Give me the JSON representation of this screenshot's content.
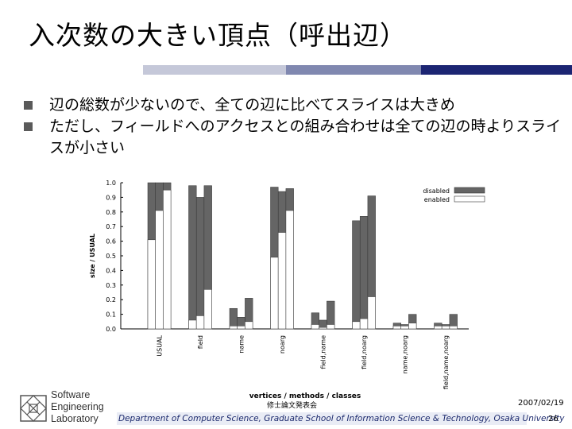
{
  "slide": {
    "title": "入次数の大きい頂点（呼出辺）",
    "bullets": [
      "辺の総数が少ないので、全ての辺に比べてスライスは大きめ",
      "ただし、フィールドへのアクセスとの組み合わせは全ての辺の時よりスライスが小さい"
    ],
    "date": "2007/02/19",
    "note": "修士論文発表会",
    "footer": "Department of Computer Science, Graduate School of Information Science & Technology, Osaka University",
    "page": "26",
    "logo_lines": [
      "Software",
      "Engineering",
      "Laboratory"
    ]
  },
  "colors": {
    "disabled": "#656565",
    "enabled": "#ffffff",
    "title_rule": [
      "#ffffff",
      "#c5c8d9",
      "#8088b0",
      "#1c2573"
    ]
  },
  "chart_data": {
    "type": "bar",
    "xlabel": "vertices / methods / classes",
    "ylabel": "size / USUAL",
    "ylim": [
      0,
      1.0
    ],
    "yticks": [
      "0.0",
      "0.1",
      "0.2",
      "0.3",
      "0.4",
      "0.5",
      "0.6",
      "0.7",
      "0.8",
      "0.9",
      "1.0"
    ],
    "legend_position": "top-right",
    "categories": [
      "USUAL",
      "field",
      "name",
      "noarg",
      "field,name",
      "field,noarg",
      "name,noarg",
      "field,name,noarg"
    ],
    "series": [
      {
        "name": "disabled",
        "values": [
          [
            1.0,
            1.0,
            1.0
          ],
          [
            0.98,
            0.9,
            0.98
          ],
          [
            0.14,
            0.08,
            0.21
          ],
          [
            0.97,
            0.94,
            0.96
          ],
          [
            0.11,
            0.06,
            0.19
          ],
          [
            0.74,
            0.77,
            0.91
          ],
          [
            0.04,
            0.03,
            0.1
          ],
          [
            0.04,
            0.03,
            0.1
          ]
        ]
      },
      {
        "name": "enabled",
        "values": [
          [
            0.61,
            0.81,
            0.95
          ],
          [
            0.06,
            0.09,
            0.27
          ],
          [
            0.02,
            0.02,
            0.05
          ],
          [
            0.49,
            0.66,
            0.81
          ],
          [
            0.03,
            0.01,
            0.03
          ],
          [
            0.05,
            0.07,
            0.22
          ],
          [
            0.02,
            0.02,
            0.04
          ],
          [
            0.02,
            0.02,
            0.02
          ]
        ]
      }
    ]
  }
}
